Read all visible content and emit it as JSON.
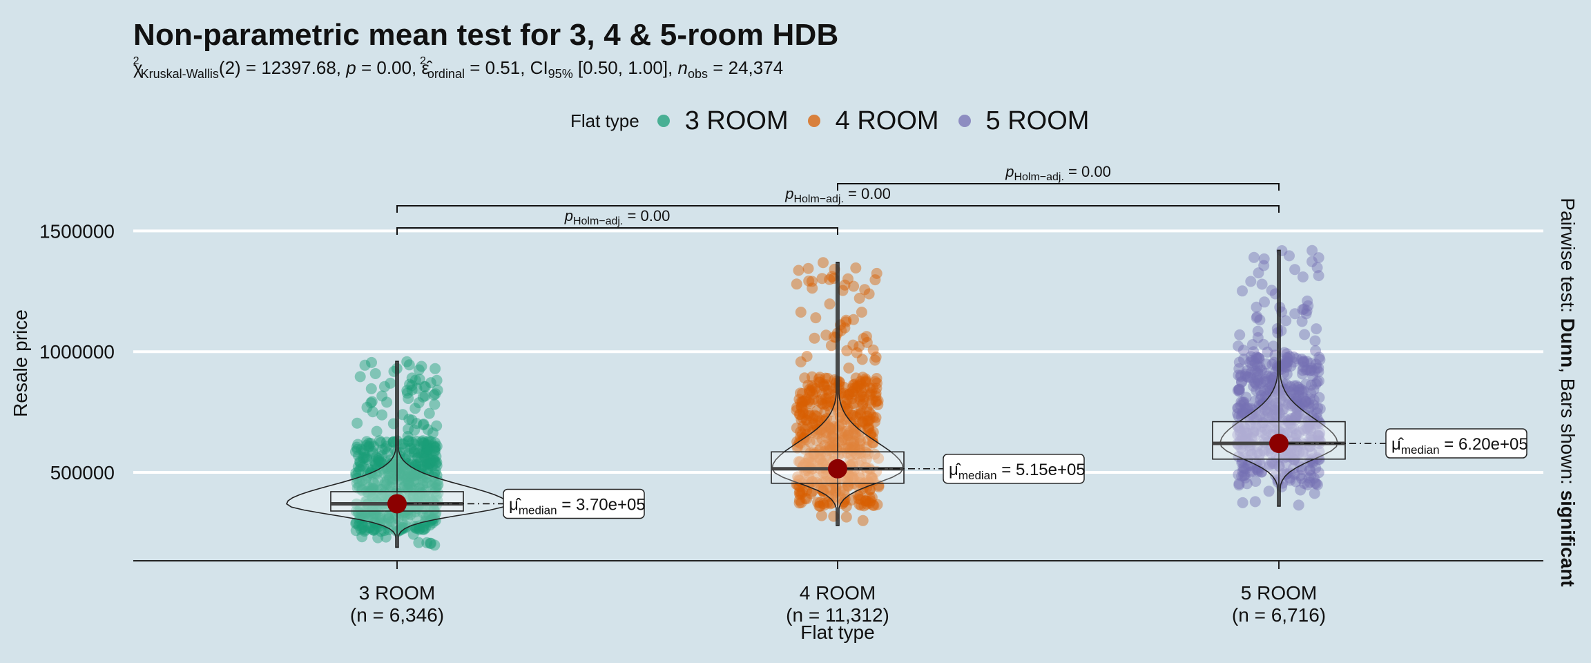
{
  "title": "Non-parametric mean test for 3, 4 & 5-room HDB",
  "subtitle": {
    "stat": "12397.68",
    "df": "2",
    "p": "0.00",
    "effect": "0.51",
    "ci_low": "0.50",
    "ci_high": "1.00",
    "n_obs": "24,374"
  },
  "legend": {
    "title": "Flat type",
    "items": [
      {
        "label": "3 ROOM",
        "color": "#1b9e77"
      },
      {
        "label": "4 ROOM",
        "color": "#d95f02"
      },
      {
        "label": "5 ROOM",
        "color": "#7570b3"
      }
    ]
  },
  "caption": {
    "prefix": "Pairwise test: ",
    "test": "Dunn",
    "middle": ", Bars shown: ",
    "shown": "significant"
  },
  "chart_data": {
    "type": "violin-box-scatter",
    "title": "Non-parametric mean test for 3, 4 & 5-room HDB",
    "xlabel": "Flat type",
    "ylabel": "Resale price",
    "ylim": [
      120000,
      1800000
    ],
    "yticks": [
      500000,
      1000000,
      1500000
    ],
    "ytick_labels": [
      "500000",
      "1000000",
      "1500000"
    ],
    "grid": "horizontal",
    "legend_position": "top",
    "groups": [
      {
        "name": "3 ROOM",
        "n": "6,346",
        "color": "#1b9e77",
        "median": 370000,
        "median_label": "3.70e+05",
        "q1": 340000,
        "q3": 420000,
        "min": 190000,
        "max": 960000,
        "point_min": 190000,
        "point_max": 960000
      },
      {
        "name": "4 ROOM",
        "n": "11,312",
        "color": "#d95f02",
        "median": 515000,
        "median_label": "5.15e+05",
        "q1": 455000,
        "q3": 585000,
        "min": 280000,
        "max": 1370000,
        "point_min": 280000,
        "point_max": 1370000
      },
      {
        "name": "5 ROOM",
        "n": "6,716",
        "color": "#7570b3",
        "median": 620000,
        "median_label": "6.20e+05",
        "q1": 555000,
        "q3": 710000,
        "min": 360000,
        "max": 1420000,
        "point_min": 360000,
        "point_max": 1420000
      }
    ],
    "pairwise": [
      {
        "from": "3 ROOM",
        "to": "4 ROOM",
        "p": "0.00",
        "label": "Holm−adj."
      },
      {
        "from": "3 ROOM",
        "to": "5 ROOM",
        "p": "0.00",
        "label": "Holm−adj."
      },
      {
        "from": "4 ROOM",
        "to": "5 ROOM",
        "p": "0.00",
        "label": "Holm−adj."
      }
    ]
  }
}
